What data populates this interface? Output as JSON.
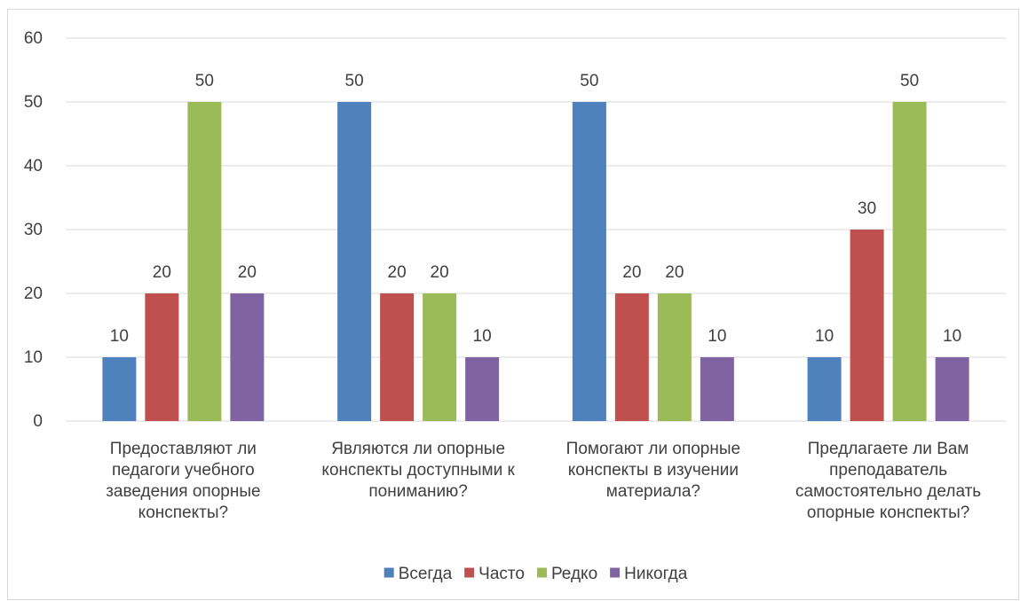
{
  "chart_data": {
    "type": "bar",
    "categories": [
      [
        "Предоставляют ли",
        "педагоги учебного",
        "заведения опорные",
        "конспекты?"
      ],
      [
        "Являются ли опорные",
        "конспекты доступными к",
        "пониманию?"
      ],
      [
        "Помогают ли опорные",
        "конспекты в изучении",
        "материала?"
      ],
      [
        "Предлагаете ли Вам",
        "преподаватель",
        "самостоятельно делать",
        "опорные конспекты?"
      ]
    ],
    "series": [
      {
        "name": "Всегда",
        "color": "#4f81bd",
        "values": [
          10,
          50,
          50,
          10
        ]
      },
      {
        "name": "Часто",
        "color": "#c0504d",
        "values": [
          20,
          20,
          20,
          30
        ]
      },
      {
        "name": "Редко",
        "color": "#9bbb59",
        "values": [
          50,
          20,
          20,
          50
        ]
      },
      {
        "name": "Никогда",
        "color": "#8064a2",
        "values": [
          20,
          10,
          10,
          10
        ]
      }
    ],
    "ylim": [
      0,
      60
    ],
    "yticks": [
      0,
      10,
      20,
      30,
      40,
      50,
      60
    ],
    "grid": true,
    "legend": "bottom",
    "data_labels": true
  }
}
